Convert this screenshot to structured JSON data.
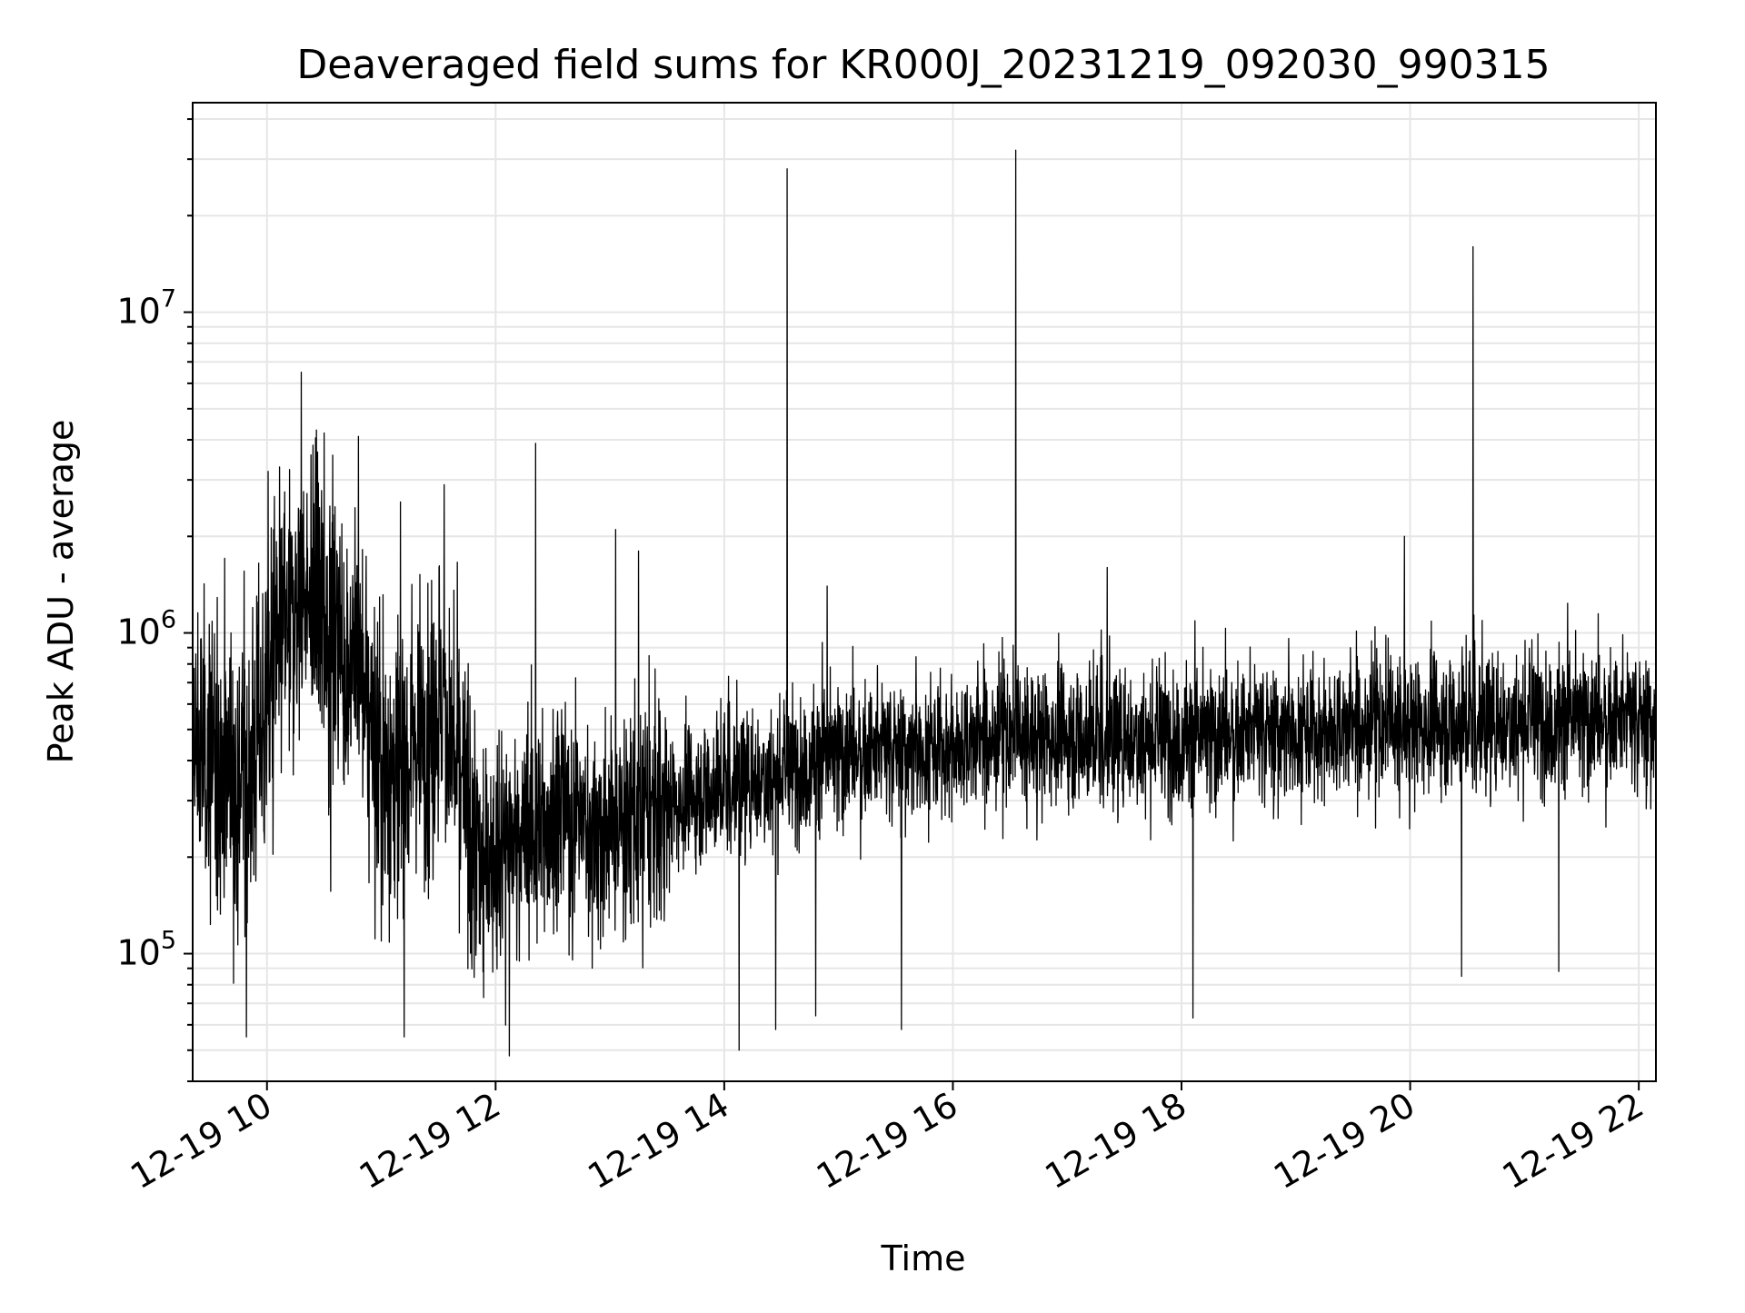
{
  "chart_data": {
    "type": "line",
    "title": "Deaveraged field sums for KR000J_20231219_092030_990315",
    "xlabel": "Time",
    "ylabel": "Peak ADU - average",
    "x_unit": "hours of day, 2023-12-19",
    "xlim": [
      9.35,
      22.15
    ],
    "ylim": [
      40000,
      45000000
    ],
    "yscale": "log",
    "grid": true,
    "legend": "none",
    "line_color": "#000000",
    "grid_color": "#e6e6e6",
    "x_ticks": [
      {
        "value": 10,
        "label": "12-19 10"
      },
      {
        "value": 12,
        "label": "12-19 12"
      },
      {
        "value": 14,
        "label": "12-19 14"
      },
      {
        "value": 16,
        "label": "12-19 16"
      },
      {
        "value": 18,
        "label": "12-19 18"
      },
      {
        "value": 20,
        "label": "12-19 20"
      },
      {
        "value": 22,
        "label": "12-19 22"
      }
    ],
    "y_ticks": [
      {
        "value": 100000,
        "base": "10",
        "exp": "5"
      },
      {
        "value": 1000000,
        "base": "10",
        "exp": "6"
      },
      {
        "value": 10000000,
        "base": "10",
        "exp": "7"
      }
    ],
    "series": [
      {
        "sample_interval_hours": 0.0025,
        "baseline": [
          [
            9.35,
            420000
          ],
          [
            9.6,
            400000
          ],
          [
            9.85,
            350000
          ],
          [
            10.05,
            800000
          ],
          [
            10.3,
            1350000
          ],
          [
            10.6,
            1000000
          ],
          [
            10.9,
            600000
          ],
          [
            11.05,
            330000
          ],
          [
            11.3,
            480000
          ],
          [
            11.55,
            600000
          ],
          [
            11.7,
            330000
          ],
          [
            11.85,
            190000
          ],
          [
            12.1,
            220000
          ],
          [
            12.5,
            280000
          ],
          [
            13.0,
            240000
          ],
          [
            13.5,
            290000
          ],
          [
            14.0,
            340000
          ],
          [
            14.5,
            370000
          ],
          [
            15.0,
            420000
          ],
          [
            15.5,
            430000
          ],
          [
            16.0,
            450000
          ],
          [
            16.5,
            480000
          ],
          [
            17.0,
            480000
          ],
          [
            18.0,
            470000
          ],
          [
            19.0,
            500000
          ],
          [
            20.0,
            520000
          ],
          [
            21.0,
            540000
          ],
          [
            22.15,
            530000
          ]
        ],
        "spikes": [
          {
            "x": 10.3,
            "y": 6500000
          },
          {
            "x": 10.5,
            "y": 4200000
          },
          {
            "x": 10.8,
            "y": 4100000
          },
          {
            "x": 11.55,
            "y": 2900000
          },
          {
            "x": 12.35,
            "y": 3900000
          },
          {
            "x": 13.05,
            "y": 2100000
          },
          {
            "x": 13.25,
            "y": 1800000
          },
          {
            "x": 14.55,
            "y": 28000000
          },
          {
            "x": 14.9,
            "y": 1400000
          },
          {
            "x": 16.55,
            "y": 32000000
          },
          {
            "x": 17.35,
            "y": 1600000
          },
          {
            "x": 19.95,
            "y": 2000000
          },
          {
            "x": 20.55,
            "y": 16000000
          }
        ],
        "dips": [
          {
            "x": 9.82,
            "y": 55000
          },
          {
            "x": 11.2,
            "y": 55000
          },
          {
            "x": 12.12,
            "y": 48000
          },
          {
            "x": 14.13,
            "y": 50000
          },
          {
            "x": 14.45,
            "y": 58000
          },
          {
            "x": 14.8,
            "y": 64000
          },
          {
            "x": 15.55,
            "y": 58000
          },
          {
            "x": 18.1,
            "y": 63000
          },
          {
            "x": 21.3,
            "y": 88000
          },
          {
            "x": 20.45,
            "y": 85000
          }
        ]
      }
    ]
  }
}
